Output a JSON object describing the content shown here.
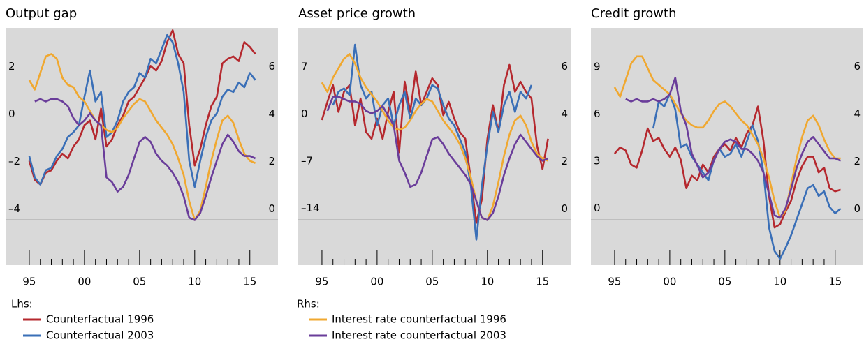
{
  "chart_data": [
    {
      "type": "line",
      "title": "Output gap",
      "x": [
        1995.0,
        1995.5,
        1996.0,
        1996.5,
        1997.0,
        1997.5,
        1998.0,
        1998.5,
        1999.0,
        1999.5,
        2000.0,
        2000.5,
        2001.0,
        2001.5,
        2002.0,
        2002.5,
        2003.0,
        2003.5,
        2004.0,
        2004.5,
        2005.0,
        2005.5,
        2006.0,
        2006.5,
        2007.0,
        2007.5,
        2008.0,
        2008.5,
        2009.0,
        2009.5,
        2010.0,
        2010.5,
        2011.0,
        2011.5,
        2012.0,
        2012.5,
        2013.0,
        2013.5,
        2014.0,
        2014.5,
        2015.0,
        2015.5
      ],
      "xlim": [
        1992.85,
        2017.55
      ],
      "xticks": [
        {
          "value": 1995,
          "label": "95"
        },
        {
          "value": 2000,
          "label": "00"
        },
        {
          "value": 2005,
          "label": "05"
        },
        {
          "value": 2010,
          "label": "10"
        },
        {
          "value": 2015,
          "label": "15"
        }
      ],
      "minor_xticks": [
        1996,
        1997,
        1998,
        1999,
        2001,
        2002,
        2003,
        2004,
        2006,
        2007,
        2008,
        2009,
        2011,
        2012,
        2013,
        2014
      ],
      "ylim": [
        -5.9,
        4.1
      ],
      "yticks": [
        {
          "value": -4,
          "label": "–4"
        },
        {
          "value": -2,
          "label": "–2"
        },
        0,
        2
      ],
      "y2lim": [
        -1.9,
        8.1
      ],
      "y2ticks": [
        0,
        2,
        4,
        6
      ],
      "zero_line": true,
      "series": [
        {
          "color": "#b5282e",
          "values": [
            -1.5,
            -2.3,
            -2.5,
            -2.0,
            -1.9,
            -1.5,
            -1.2,
            -1.4,
            -0.9,
            -0.6,
            0.0,
            0.2,
            -0.6,
            0.7,
            -0.9,
            -0.6,
            0.0,
            0.4,
            1.0,
            1.2,
            1.6,
            2.0,
            2.5,
            2.3,
            2.7,
            3.5,
            4.0,
            3.0,
            2.6,
            0.0,
            -1.7,
            -1.0,
            0.0,
            0.8,
            1.2,
            2.6,
            2.8,
            2.9,
            2.7,
            3.5,
            3.3,
            3.0
          ]
        },
        {
          "color": "#3a6fb7",
          "values": [
            -1.3,
            -2.2,
            -2.5,
            -1.9,
            -1.8,
            -1.3,
            -1.0,
            -0.5,
            -0.3,
            0.0,
            1.2,
            2.3,
            1.0,
            1.4,
            -0.5,
            -0.3,
            0.2,
            1.0,
            1.4,
            1.6,
            2.2,
            2.0,
            2.8,
            2.6,
            3.2,
            3.8,
            3.5,
            2.6,
            1.4,
            -1.5,
            -2.6,
            -1.5,
            -0.5,
            0.2,
            0.5,
            1.2,
            1.5,
            1.4,
            1.8,
            1.6,
            2.2,
            1.9
          ]
        },
        {
          "color": "#f0a830",
          "axis": "y2",
          "values": [
            5.9,
            5.5,
            6.2,
            6.9,
            7.0,
            6.8,
            6.0,
            5.7,
            5.6,
            5.2,
            5.0,
            4.6,
            4.2,
            4.0,
            3.8,
            3.7,
            3.9,
            4.3,
            4.6,
            4.9,
            5.1,
            5.0,
            4.6,
            4.2,
            3.9,
            3.6,
            3.2,
            2.6,
            1.9,
            0.8,
            0.0,
            0.4,
            1.4,
            2.5,
            3.4,
            4.2,
            4.4,
            4.1,
            3.4,
            2.8,
            2.5,
            2.4
          ]
        },
        {
          "color": "#6a3d9a",
          "axis": "y2",
          "values": [
            null,
            5.0,
            5.1,
            5.0,
            5.1,
            5.1,
            5.0,
            4.8,
            4.3,
            4.0,
            4.2,
            4.5,
            4.2,
            4.0,
            1.8,
            1.6,
            1.2,
            1.4,
            1.9,
            2.6,
            3.3,
            3.5,
            3.3,
            2.8,
            2.5,
            2.3,
            2.0,
            1.6,
            1.0,
            0.1,
            0.0,
            0.3,
            1.0,
            1.8,
            2.5,
            3.2,
            3.6,
            3.3,
            2.9,
            2.7,
            2.7,
            2.6
          ]
        }
      ]
    },
    {
      "type": "line",
      "title": "Asset price growth",
      "x": [
        1995.0,
        1995.5,
        1996.0,
        1996.5,
        1997.0,
        1997.5,
        1998.0,
        1998.5,
        1999.0,
        1999.5,
        2000.0,
        2000.5,
        2001.0,
        2001.5,
        2002.0,
        2002.5,
        2003.0,
        2003.5,
        2004.0,
        2004.5,
        2005.0,
        2005.5,
        2006.0,
        2006.5,
        2007.0,
        2007.5,
        2008.0,
        2008.5,
        2009.0,
        2009.5,
        2010.0,
        2010.5,
        2011.0,
        2011.5,
        2012.0,
        2012.5,
        2013.0,
        2013.5,
        2014.0,
        2014.5,
        2015.0,
        2015.5
      ],
      "xlim": [
        1992.85,
        2017.55
      ],
      "xticks": [
        {
          "value": 1995,
          "label": "95"
        },
        {
          "value": 2000,
          "label": "00"
        },
        {
          "value": 2005,
          "label": "05"
        },
        {
          "value": 2010,
          "label": "10"
        },
        {
          "value": 2015,
          "label": "15"
        }
      ],
      "minor_xticks": [
        1996,
        1997,
        1998,
        1999,
        2001,
        2002,
        2003,
        2004,
        2006,
        2007,
        2008,
        2009,
        2011,
        2012,
        2013,
        2014
      ],
      "ylim": [
        -20.8,
        14.5
      ],
      "yticks": [
        {
          "value": -14,
          "label": "–14"
        },
        {
          "value": -7,
          "label": "–7"
        },
        0,
        7
      ],
      "y2lim": [
        -1.9,
        8.1
      ],
      "y2ticks": [
        0,
        2,
        4,
        6
      ],
      "zero_line": true,
      "series": [
        {
          "color": "#b5282e",
          "values": [
            0.8,
            3.5,
            6.0,
            2.0,
            5.0,
            6.0,
            0.0,
            4.0,
            -1.0,
            -2.0,
            1.0,
            -2.0,
            2.0,
            5.0,
            -4.0,
            6.5,
            2.0,
            8.0,
            3.0,
            5.0,
            7.0,
            6.0,
            1.5,
            3.5,
            1.0,
            -1.0,
            -2.0,
            -8.0,
            -14.5,
            -11.0,
            -2.0,
            3.0,
            -1.0,
            6.0,
            9.0,
            5.0,
            6.5,
            5.0,
            4.0,
            -3.0,
            -6.5,
            -2.0
          ]
        },
        {
          "color": "#3a6fb7",
          "values": [
            null,
            null,
            3.0,
            5.0,
            5.5,
            4.5,
            12.0,
            6.0,
            4.0,
            5.0,
            0.0,
            3.0,
            4.0,
            0.0,
            3.0,
            5.0,
            1.0,
            4.0,
            3.0,
            4.0,
            6.0,
            5.5,
            3.0,
            1.0,
            0.0,
            -2.0,
            -4.0,
            -9.0,
            -17.0,
            -9.0,
            -3.0,
            2.0,
            -1.0,
            3.0,
            5.0,
            2.0,
            5.0,
            4.0,
            6.0,
            null,
            null,
            null
          ]
        },
        {
          "color": "#f0a830",
          "axis": "y2",
          "values": [
            5.8,
            5.4,
            6.0,
            6.4,
            6.8,
            7.0,
            6.6,
            6.0,
            5.6,
            5.3,
            5.0,
            4.6,
            4.2,
            3.9,
            3.8,
            3.9,
            4.2,
            4.6,
            4.9,
            5.1,
            5.0,
            4.6,
            4.2,
            3.9,
            3.6,
            3.2,
            2.6,
            1.8,
            0.8,
            0.1,
            0.0,
            0.6,
            1.6,
            2.7,
            3.6,
            4.2,
            4.4,
            4.0,
            3.3,
            2.8,
            2.6,
            2.5
          ]
        },
        {
          "color": "#6a3d9a",
          "axis": "y2",
          "values": [
            null,
            4.6,
            5.2,
            5.2,
            5.1,
            5.0,
            5.0,
            4.9,
            4.6,
            4.5,
            4.6,
            4.8,
            4.4,
            4.0,
            2.5,
            2.0,
            1.4,
            1.5,
            2.0,
            2.7,
            3.4,
            3.5,
            3.2,
            2.8,
            2.5,
            2.2,
            1.9,
            1.5,
            0.8,
            0.1,
            0.0,
            0.3,
            1.0,
            1.9,
            2.6,
            3.2,
            3.6,
            3.3,
            3.0,
            2.7,
            2.5,
            2.6
          ]
        }
      ]
    },
    {
      "type": "line",
      "title": "Credit growth",
      "x": [
        1995.0,
        1995.5,
        1996.0,
        1996.5,
        1997.0,
        1997.5,
        1998.0,
        1998.5,
        1999.0,
        1999.5,
        2000.0,
        2000.5,
        2001.0,
        2001.5,
        2002.0,
        2002.5,
        2003.0,
        2003.5,
        2004.0,
        2004.5,
        2005.0,
        2005.5,
        2006.0,
        2006.5,
        2007.0,
        2007.5,
        2008.0,
        2008.5,
        2009.0,
        2009.5,
        2010.0,
        2010.5,
        2011.0,
        2011.5,
        2012.0,
        2012.5,
        2013.0,
        2013.5,
        2014.0,
        2014.5,
        2015.0,
        2015.5
      ],
      "xlim": [
        1992.85,
        2017.55
      ],
      "xticks": [
        {
          "value": 1995,
          "label": "95"
        },
        {
          "value": 2000,
          "label": "00"
        },
        {
          "value": 2005,
          "label": "05"
        },
        {
          "value": 2010,
          "label": "10"
        },
        {
          "value": 2015,
          "label": "15"
        }
      ],
      "minor_xticks": [
        1996,
        1997,
        1998,
        1999,
        2001,
        2002,
        2003,
        2004,
        2006,
        2007,
        2008,
        2009,
        2011,
        2012,
        2013,
        2014
      ],
      "ylim": [
        -2.9,
        12.2
      ],
      "yticks": [
        0,
        3,
        6,
        9
      ],
      "y2lim": [
        -1.9,
        8.1
      ],
      "y2ticks": [
        0,
        2,
        4,
        6
      ],
      "zero_line": true,
      "series": [
        {
          "color": "#b5282e",
          "values": [
            4.2,
            4.6,
            4.4,
            3.5,
            3.3,
            4.4,
            5.8,
            5.0,
            5.2,
            4.5,
            4.0,
            4.6,
            3.8,
            2.0,
            2.8,
            2.5,
            3.5,
            3.0,
            4.0,
            4.5,
            4.8,
            4.4,
            5.2,
            4.6,
            5.5,
            6.0,
            7.2,
            5.0,
            1.5,
            -0.5,
            -0.3,
            0.5,
            1.2,
            2.5,
            3.4,
            4.0,
            4.0,
            3.0,
            3.3,
            2.0,
            1.8,
            1.9
          ]
        },
        {
          "color": "#3a6fb7",
          "values": [
            null,
            null,
            null,
            null,
            null,
            null,
            null,
            5.8,
            7.5,
            7.2,
            8.0,
            7.0,
            4.6,
            4.8,
            4.0,
            3.5,
            3.0,
            2.5,
            3.8,
            4.5,
            4.0,
            4.2,
            4.8,
            4.0,
            5.0,
            6.0,
            5.0,
            3.0,
            -0.5,
            -2.0,
            -2.5,
            -1.8,
            -1.0,
            0.0,
            1.0,
            2.0,
            2.2,
            1.5,
            1.8,
            0.8,
            0.4,
            0.7
          ]
        },
        {
          "color": "#f0a830",
          "axis": "y2",
          "values": [
            5.6,
            5.2,
            5.9,
            6.6,
            6.9,
            6.9,
            6.4,
            5.9,
            5.7,
            5.5,
            5.3,
            4.9,
            4.5,
            4.2,
            4.0,
            3.9,
            3.9,
            4.2,
            4.6,
            4.9,
            5.0,
            4.8,
            4.5,
            4.2,
            4.0,
            3.6,
            3.2,
            2.6,
            1.8,
            0.8,
            0.1,
            0.4,
            1.5,
            2.6,
            3.5,
            4.2,
            4.4,
            4.0,
            3.4,
            2.9,
            2.6,
            2.6
          ]
        },
        {
          "color": "#6a3d9a",
          "axis": "y2",
          "values": [
            null,
            null,
            5.1,
            5.0,
            5.1,
            5.0,
            5.0,
            5.1,
            5.0,
            5.1,
            5.3,
            6.0,
            4.6,
            4.0,
            2.8,
            2.3,
            1.8,
            2.0,
            2.5,
            3.0,
            3.3,
            3.4,
            3.3,
            3.0,
            3.0,
            2.8,
            2.5,
            2.0,
            1.1,
            0.2,
            0.1,
            0.5,
            1.3,
            2.2,
            2.8,
            3.3,
            3.5,
            3.2,
            2.9,
            2.6,
            2.6,
            2.5
          ]
        }
      ]
    }
  ],
  "legend": {
    "groups": [
      {
        "title": "Lhs:",
        "items": [
          {
            "name": "Counterfactual 1996",
            "color": "#b5282e"
          },
          {
            "name": "Counterfactual 2003",
            "color": "#3a6fb7"
          }
        ]
      },
      {
        "title": "Rhs:",
        "items": [
          {
            "name": "Interest rate counterfactual 1996",
            "color": "#f0a830"
          },
          {
            "name": "Interest rate counterfactual 2003",
            "color": "#6a3d9a"
          }
        ]
      }
    ]
  }
}
